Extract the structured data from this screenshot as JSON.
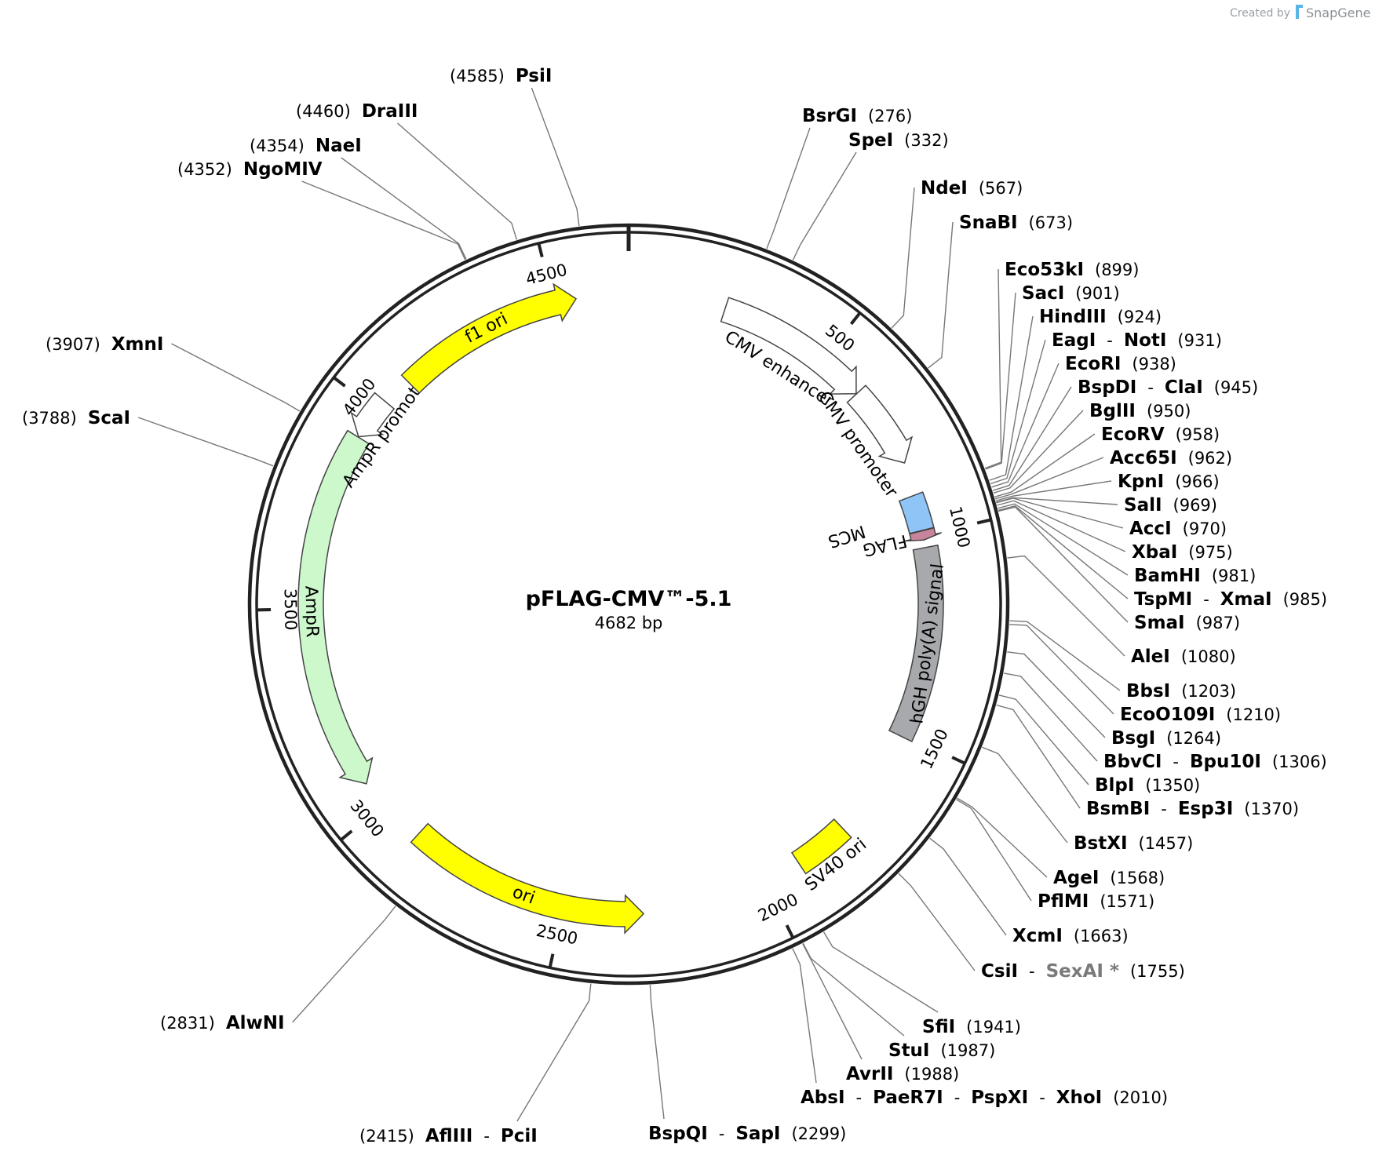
{
  "header": {
    "credit_prefix": "Created by",
    "brand": "SnapGene"
  },
  "plasmid": {
    "name": "pFLAG-CMV™-5.1",
    "size_label": "4682 bp",
    "length_bp": 4682
  },
  "ticks": [
    {
      "bp": 500,
      "label": "500"
    },
    {
      "bp": 1000,
      "label": "1000"
    },
    {
      "bp": 1500,
      "label": "1500"
    },
    {
      "bp": 2000,
      "label": "2000"
    },
    {
      "bp": 2500,
      "label": "2500"
    },
    {
      "bp": 3000,
      "label": "3000"
    },
    {
      "bp": 3500,
      "label": "3500"
    },
    {
      "bp": 4000,
      "label": "4000"
    },
    {
      "bp": 4500,
      "label": "4500"
    }
  ],
  "features": [
    {
      "name": "CMV enhancer",
      "start": 235,
      "end": 614,
      "strand": 1,
      "color": "#ffffff"
    },
    {
      "name": "CMV promoter",
      "start": 615,
      "end": 818,
      "strand": 1,
      "color": "#ffffff"
    },
    {
      "name": "MCS",
      "start": 899,
      "end": 987,
      "strand": 0,
      "color": "#8fc4f7"
    },
    {
      "name": "FLAG",
      "start": 988,
      "end": 1011,
      "strand": 1,
      "color": "#c7849c"
    },
    {
      "name": "hGH poly(A) signal",
      "start": 1030,
      "end": 1507,
      "strand": 0,
      "color": "#a7a9ac"
    },
    {
      "name": "SV40 ori",
      "start": 1773,
      "end": 1908,
      "strand": 0,
      "color": "#ffff00"
    },
    {
      "name": "ori",
      "start": 2305,
      "end": 2893,
      "strand": -1,
      "color": "#ffff00"
    },
    {
      "name": "AmpR",
      "start": 3064,
      "end": 3924,
      "strand": -1,
      "color": "#ccf8cc"
    },
    {
      "name": "AmpR promoter",
      "start": 3925,
      "end": 4029,
      "strand": -1,
      "color": "#ffffff"
    },
    {
      "name": "f1 ori",
      "start": 4100,
      "end": 4555,
      "strand": 1,
      "color": "#ffff00"
    }
  ],
  "sites": [
    {
      "names": [
        "BsrGI"
      ],
      "pos": "(276)",
      "bp": 276
    },
    {
      "names": [
        "SpeI"
      ],
      "pos": "(332)",
      "bp": 332
    },
    {
      "names": [
        "NdeI"
      ],
      "pos": "(567)",
      "bp": 567
    },
    {
      "names": [
        "SnaBI"
      ],
      "pos": "(673)",
      "bp": 673
    },
    {
      "names": [
        "Eco53kI"
      ],
      "pos": "(899)",
      "bp": 899
    },
    {
      "names": [
        "SacI"
      ],
      "pos": "(901)",
      "bp": 901
    },
    {
      "names": [
        "HindIII"
      ],
      "pos": "(924)",
      "bp": 924
    },
    {
      "names": [
        "EagI",
        "NotI"
      ],
      "pos": "(931)",
      "bp": 931
    },
    {
      "names": [
        "EcoRI"
      ],
      "pos": "(938)",
      "bp": 938
    },
    {
      "names": [
        "BspDI",
        "ClaI"
      ],
      "pos": "(945)",
      "bp": 945
    },
    {
      "names": [
        "BglII"
      ],
      "pos": "(950)",
      "bp": 950
    },
    {
      "names": [
        "EcoRV"
      ],
      "pos": "(958)",
      "bp": 958
    },
    {
      "names": [
        "Acc65I"
      ],
      "pos": "(962)",
      "bp": 962
    },
    {
      "names": [
        "KpnI"
      ],
      "pos": "(966)",
      "bp": 966
    },
    {
      "names": [
        "SalI"
      ],
      "pos": "(969)",
      "bp": 969
    },
    {
      "names": [
        "AccI"
      ],
      "pos": "(970)",
      "bp": 970
    },
    {
      "names": [
        "XbaI"
      ],
      "pos": "(975)",
      "bp": 975
    },
    {
      "names": [
        "BamHI"
      ],
      "pos": "(981)",
      "bp": 981
    },
    {
      "names": [
        "TspMI",
        "XmaI"
      ],
      "pos": "(985)",
      "bp": 985
    },
    {
      "names": [
        "SmaI"
      ],
      "pos": "(987)",
      "bp": 987
    },
    {
      "names": [
        "AleI"
      ],
      "pos": "(1080)",
      "bp": 1080
    },
    {
      "names": [
        "BbsI"
      ],
      "pos": "(1203)",
      "bp": 1203
    },
    {
      "names": [
        "EcoO109I"
      ],
      "pos": "(1210)",
      "bp": 1210
    },
    {
      "names": [
        "BsgI"
      ],
      "pos": "(1264)",
      "bp": 1264
    },
    {
      "names": [
        "BbvCI",
        "Bpu10I"
      ],
      "pos": "(1306)",
      "bp": 1306
    },
    {
      "names": [
        "BlpI"
      ],
      "pos": "(1350)",
      "bp": 1350
    },
    {
      "names": [
        "BsmBI",
        "Esp3I"
      ],
      "pos": "(1370)",
      "bp": 1370
    },
    {
      "names": [
        "BstXI"
      ],
      "pos": "(1457)",
      "bp": 1457
    },
    {
      "names": [
        "AgeI"
      ],
      "pos": "(1568)",
      "bp": 1568
    },
    {
      "names": [
        "PflMI"
      ],
      "pos": "(1571)",
      "bp": 1571
    },
    {
      "names": [
        "XcmI"
      ],
      "pos": "(1663)",
      "bp": 1663
    },
    {
      "names": [
        "CsiI",
        "SexAI *"
      ],
      "pos": "(1755)",
      "bp": 1755,
      "dim_second": true
    },
    {
      "names": [
        "SfiI"
      ],
      "pos": "(1941)",
      "bp": 1941
    },
    {
      "names": [
        "StuI"
      ],
      "pos": "(1987)",
      "bp": 1987
    },
    {
      "names": [
        "AvrII"
      ],
      "pos": "(1988)",
      "bp": 1988
    },
    {
      "names": [
        "AbsI",
        "PaeR7I",
        "PspXI",
        "XhoI"
      ],
      "pos": "(2010)",
      "bp": 2010
    },
    {
      "names": [
        "BspQI",
        "SapI"
      ],
      "pos": "(2299)",
      "bp": 2299
    },
    {
      "names": [
        "AflIII",
        "PciI"
      ],
      "pos": "(2415)",
      "bp": 2415
    },
    {
      "names": [
        "AlwNI"
      ],
      "pos": "(2831)",
      "bp": 2831
    },
    {
      "names": [
        "ScaI"
      ],
      "pos": "(3788)",
      "bp": 3788
    },
    {
      "names": [
        "XmnI"
      ],
      "pos": "(3907)",
      "bp": 3907
    },
    {
      "names": [
        "NgoMIV"
      ],
      "pos": "(4352)",
      "bp": 4352
    },
    {
      "names": [
        "NaeI"
      ],
      "pos": "(4354)",
      "bp": 4354
    },
    {
      "names": [
        "DraIII"
      ],
      "pos": "(4460)",
      "bp": 4460
    },
    {
      "names": [
        "PsiI"
      ],
      "pos": "(4585)",
      "bp": 4585
    }
  ]
}
